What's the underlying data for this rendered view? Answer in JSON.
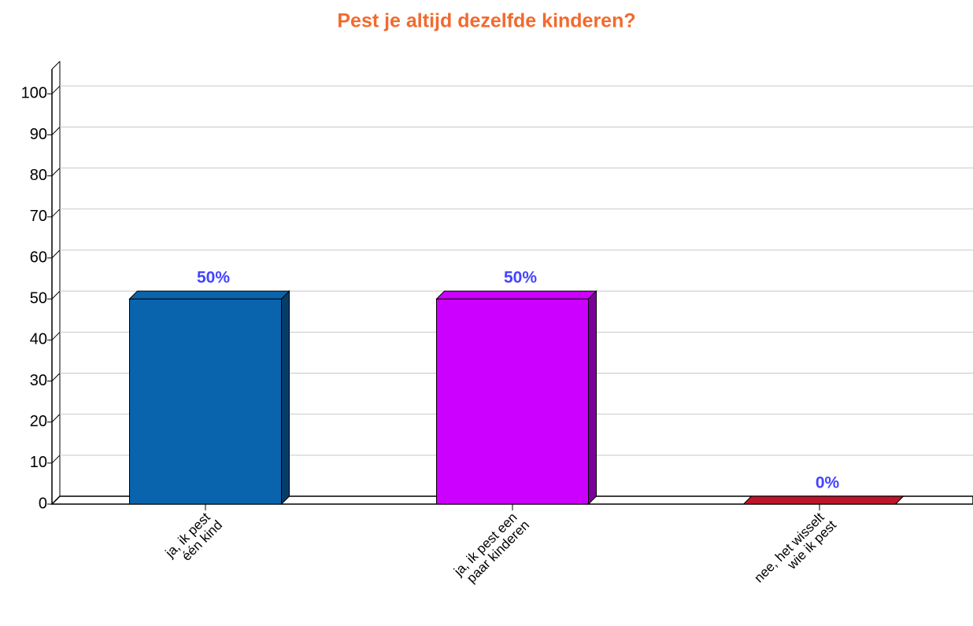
{
  "chart_data": {
    "type": "bar",
    "title": "Pest je altijd dezelfde kinderen?",
    "categories": [
      [
        "ja, ik pest",
        "één kind"
      ],
      [
        "ja, ik pest een",
        "paar kinderen"
      ],
      [
        "nee, het wisselt",
        "wie ik pest"
      ]
    ],
    "values": [
      50,
      50,
      0
    ],
    "value_labels": [
      "50%",
      "50%",
      "0%"
    ],
    "colors": [
      "#0a64ad",
      "#cc00ff",
      "#c0142a"
    ],
    "ylim": [
      0,
      106
    ],
    "yticks": [
      0,
      10,
      20,
      30,
      40,
      50,
      60,
      70,
      80,
      90,
      100
    ],
    "grid": true
  }
}
